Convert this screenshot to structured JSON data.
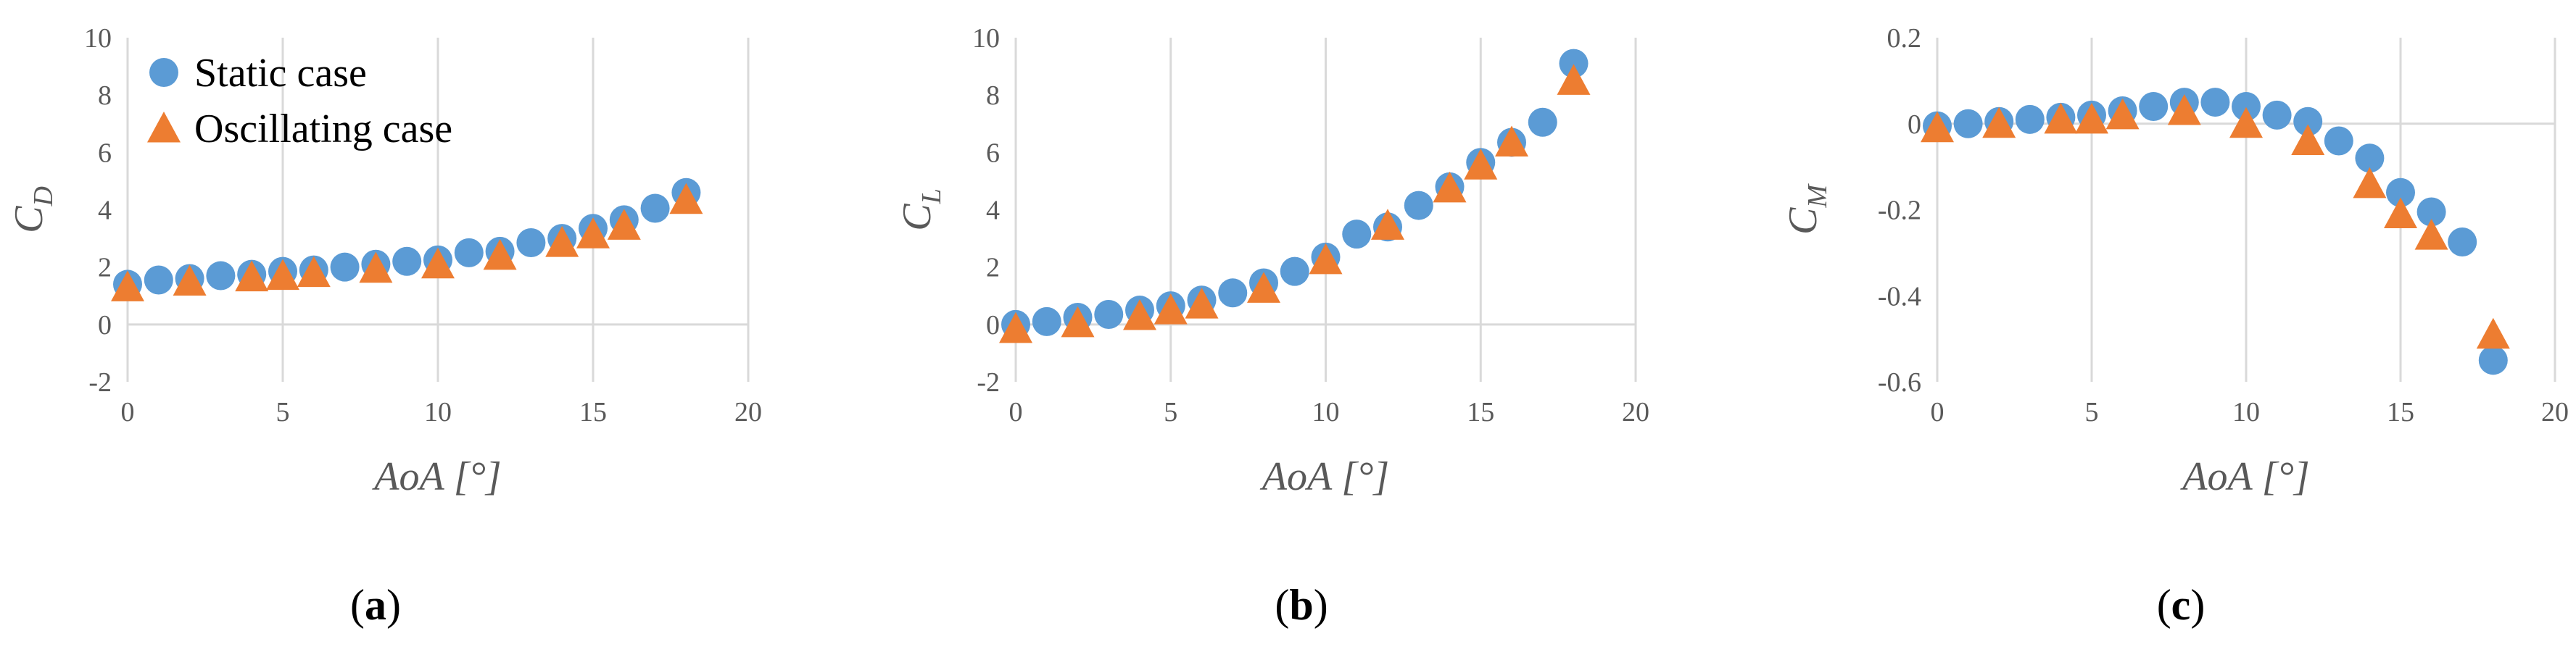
{
  "colors": {
    "static": "#5b9bd5",
    "oscillating": "#ed7d31",
    "grid": "#d9d9d9",
    "text": "#595959"
  },
  "chart_data": [
    {
      "type": "scatter",
      "panel_label": "a",
      "xlabel": "AoA [°]",
      "ylabel_main": "C",
      "ylabel_sub": "D",
      "xlim": [
        0,
        20
      ],
      "ylim": [
        -2,
        10
      ],
      "xticks": [
        0,
        5,
        10,
        15,
        20
      ],
      "yticks": [
        -2,
        0,
        2,
        4,
        6,
        8,
        10
      ],
      "grid": "vertical",
      "legend": "top-left",
      "series": [
        {
          "name": "Static case",
          "marker": "circle",
          "x": [
            0,
            1,
            2,
            3,
            4,
            5,
            6,
            7,
            8,
            9,
            10,
            11,
            12,
            13,
            14,
            15,
            16,
            17,
            18
          ],
          "y": [
            1.4,
            1.55,
            1.6,
            1.7,
            1.75,
            1.85,
            1.9,
            2.0,
            2.1,
            2.2,
            2.25,
            2.5,
            2.55,
            2.85,
            3.0,
            3.35,
            3.65,
            4.05,
            4.6
          ]
        },
        {
          "name": "Oscillating case",
          "marker": "triangle",
          "x": [
            0,
            2,
            4,
            5,
            6,
            8,
            10,
            12,
            14,
            15,
            16,
            18
          ],
          "y": [
            1.3,
            1.5,
            1.65,
            1.7,
            1.8,
            1.95,
            2.1,
            2.4,
            2.85,
            3.15,
            3.45,
            4.35
          ]
        }
      ]
    },
    {
      "type": "scatter",
      "panel_label": "b",
      "xlabel": "AoA [°]",
      "ylabel_main": "C",
      "ylabel_sub": "L",
      "xlim": [
        0,
        20
      ],
      "ylim": [
        -2,
        10
      ],
      "xticks": [
        0,
        5,
        10,
        15,
        20
      ],
      "yticks": [
        -2,
        0,
        2,
        4,
        6,
        8,
        10
      ],
      "grid": "vertical",
      "series": [
        {
          "name": "Static case",
          "marker": "circle",
          "x": [
            0,
            1,
            2,
            3,
            4,
            5,
            6,
            7,
            8,
            9,
            10,
            11,
            12,
            13,
            14,
            15,
            16,
            17,
            18
          ],
          "y": [
            0.0,
            0.1,
            0.25,
            0.35,
            0.5,
            0.65,
            0.85,
            1.1,
            1.45,
            1.85,
            2.35,
            3.15,
            3.4,
            4.15,
            4.8,
            5.65,
            6.35,
            7.05,
            9.1
          ]
        },
        {
          "name": "Oscillating case",
          "marker": "triangle",
          "x": [
            0,
            2,
            4,
            5,
            6,
            8,
            10,
            12,
            14,
            15,
            16,
            18
          ],
          "y": [
            -0.15,
            0.05,
            0.3,
            0.5,
            0.7,
            1.25,
            2.25,
            3.45,
            4.75,
            5.55,
            6.35,
            8.5
          ]
        }
      ]
    },
    {
      "type": "scatter",
      "panel_label": "c",
      "xlabel": "AoA [°]",
      "ylabel_main": "C",
      "ylabel_sub": "M",
      "xlim": [
        0,
        20
      ],
      "ylim": [
        -0.6,
        0.2
      ],
      "xticks": [
        0,
        5,
        10,
        15,
        20
      ],
      "yticks": [
        -0.6,
        -0.4,
        -0.2,
        0,
        0.2
      ],
      "ytick_labels": [
        "-0.6",
        "-0.4",
        "-0.2",
        "0",
        "0.2"
      ],
      "grid": "vertical",
      "series": [
        {
          "name": "Static case",
          "marker": "circle",
          "x": [
            0,
            1,
            2,
            3,
            4,
            5,
            6,
            7,
            8,
            9,
            10,
            11,
            12,
            13,
            14,
            15,
            16,
            17,
            18
          ],
          "y": [
            -0.005,
            0.0,
            0.005,
            0.01,
            0.015,
            0.02,
            0.03,
            0.04,
            0.05,
            0.05,
            0.04,
            0.02,
            0.005,
            -0.04,
            -0.08,
            -0.16,
            -0.205,
            -0.275,
            -0.55
          ]
        },
        {
          "name": "Oscillating case",
          "marker": "triangle",
          "x": [
            0,
            2,
            4,
            5,
            6,
            8,
            10,
            12,
            14,
            15,
            16,
            18
          ],
          "y": [
            -0.01,
            0.0,
            0.01,
            0.01,
            0.02,
            0.03,
            0.0,
            -0.04,
            -0.14,
            -0.21,
            -0.26,
            -0.49
          ]
        }
      ]
    }
  ]
}
